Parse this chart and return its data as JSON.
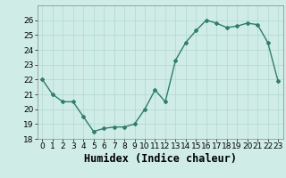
{
  "x": [
    0,
    1,
    2,
    3,
    4,
    5,
    6,
    7,
    8,
    9,
    10,
    11,
    12,
    13,
    14,
    15,
    16,
    17,
    18,
    19,
    20,
    21,
    22,
    23
  ],
  "y": [
    22.0,
    21.0,
    20.5,
    20.5,
    19.5,
    18.5,
    18.7,
    18.8,
    18.8,
    19.0,
    20.0,
    21.3,
    20.5,
    23.3,
    24.5,
    25.3,
    26.0,
    25.8,
    25.5,
    25.6,
    25.8,
    25.7,
    24.5,
    21.9
  ],
  "line_color": "#2e7d6e",
  "marker": "D",
  "marker_size": 2,
  "line_width": 1.0,
  "bg_color": "#d0ece6",
  "grid_color": "#b0d8d0",
  "xlabel": "Humidex (Indice chaleur)",
  "ylim": [
    18,
    27
  ],
  "xlim": [
    -0.5,
    23.5
  ],
  "yticks": [
    18,
    19,
    20,
    21,
    22,
    23,
    24,
    25,
    26
  ],
  "xticks": [
    0,
    1,
    2,
    3,
    4,
    5,
    6,
    7,
    8,
    9,
    10,
    11,
    12,
    13,
    14,
    15,
    16,
    17,
    18,
    19,
    20,
    21,
    22,
    23
  ],
  "tick_fontsize": 6.5,
  "xlabel_fontsize": 8.5
}
